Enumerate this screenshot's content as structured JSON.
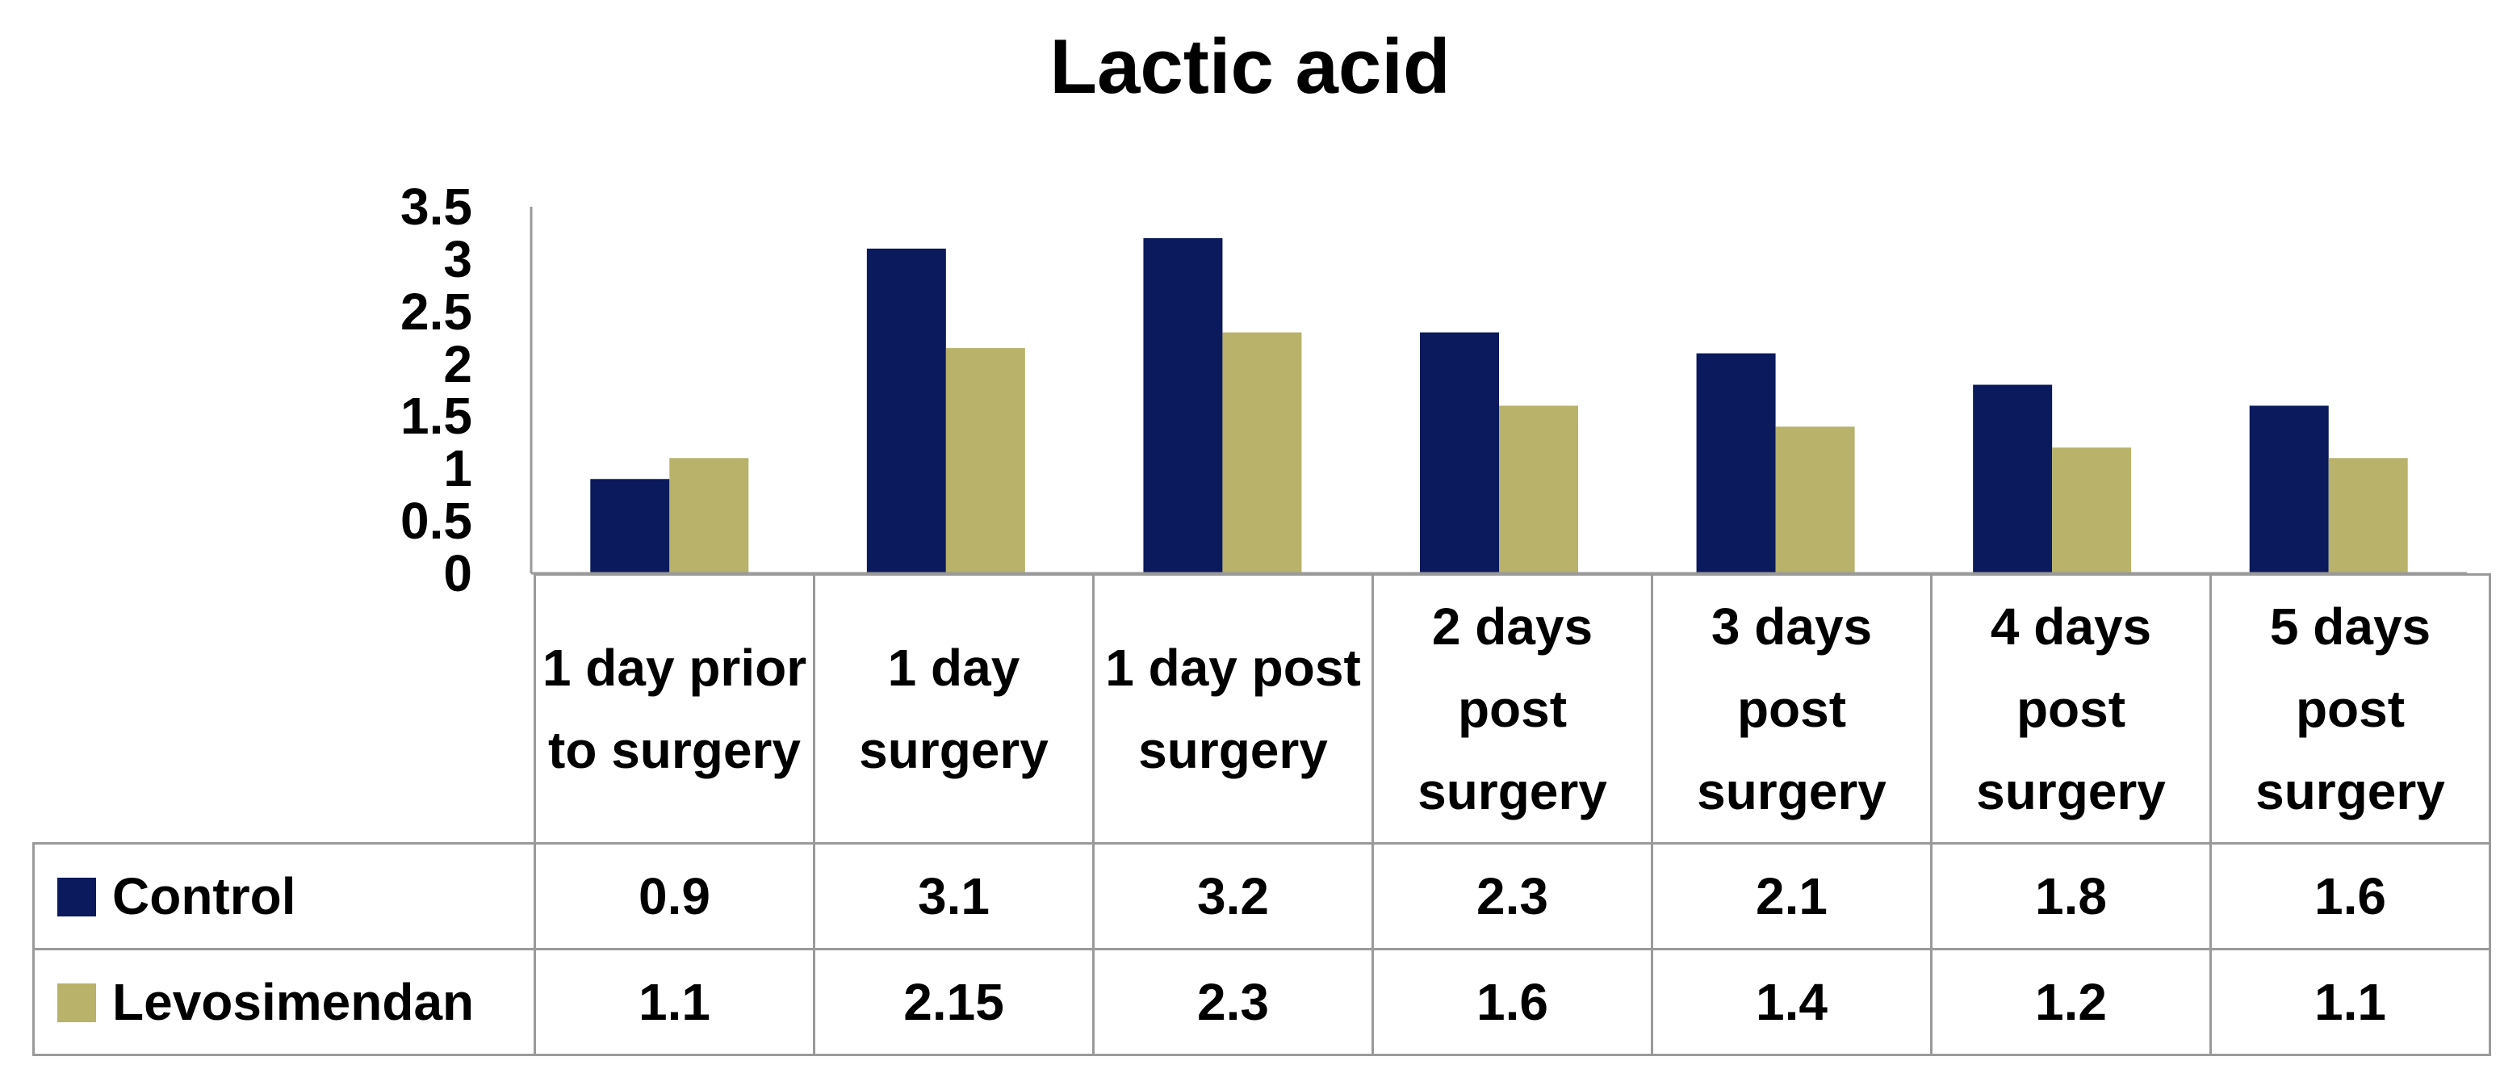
{
  "chart_data": {
    "type": "bar",
    "title": "Lactic acid",
    "categories": [
      "1 day prior to surgery",
      "1 day surgery",
      "1 day post surgery",
      "2 days post surgery",
      "3 days post surgery",
      "4 days post surgery",
      "5 days post surgery"
    ],
    "series": [
      {
        "name": "Control",
        "color": "#0a1a5c",
        "values": [
          0.9,
          3.1,
          3.2,
          2.3,
          2.1,
          1.8,
          1.6
        ]
      },
      {
        "name": "Levosimendan",
        "color": "#b8b26a",
        "values": [
          1.1,
          2.15,
          2.3,
          1.6,
          1.4,
          1.2,
          1.1
        ]
      }
    ],
    "value_labels": [
      [
        "0.9",
        "3.1",
        "3.2",
        "2.3",
        "2.1",
        "1.8",
        "1.6"
      ],
      [
        "1.1",
        "2.15",
        "2.3",
        "1.6",
        "1.4",
        "1.2",
        "1.1"
      ]
    ],
    "yticks": [
      "0",
      "0.5",
      "1",
      "1.5",
      "2",
      "2.5",
      "3",
      "3.5"
    ],
    "ylim": [
      0,
      3.5
    ],
    "xlabel": "",
    "ylabel": "",
    "legend": "data-table-rows",
    "grid": false
  }
}
